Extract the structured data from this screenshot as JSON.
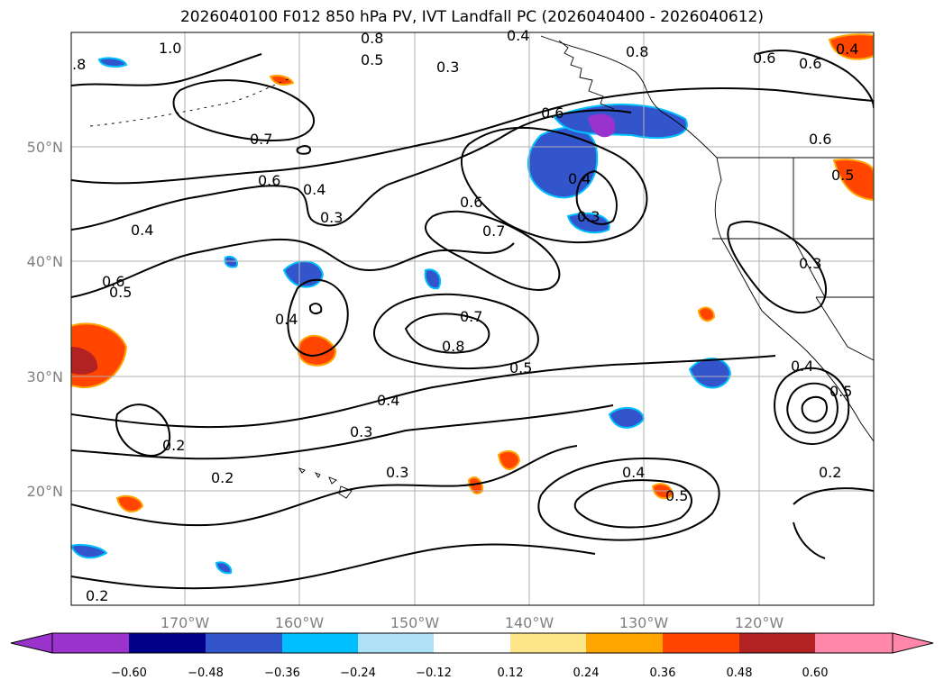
{
  "title": "2026040100 F012 850 hPa PV, IVT Landfall PC (2026040400 - 2026040612)",
  "map": {
    "lon_ticks": [
      "170°W",
      "160°W",
      "150°W",
      "140°W",
      "130°W",
      "120°W"
    ],
    "lat_ticks": [
      "50°N",
      "40°N",
      "30°N",
      "20°N"
    ],
    "contour_labels": [
      "1.0",
      ".8",
      "0.8",
      "0.6",
      "0.3",
      "0.4",
      "0.8",
      "0.6",
      "0.7",
      "0.6",
      "0.4",
      "0.3",
      "0.4",
      "0.6",
      "0.6",
      "0.5",
      "0.7",
      "0.4",
      "0.6",
      "0.4",
      "0.5",
      "0.3",
      "0.4",
      "0.3",
      "0.7",
      "0.8",
      "0.5",
      "0.4",
      "0.3",
      "0.2",
      "0.2",
      "0.3",
      "0.4",
      "0.5",
      "0.4",
      "0.2",
      "0.2",
      "0.5",
      "0.6",
      "0.5"
    ]
  },
  "colorbar": {
    "colors": [
      "#9933cc",
      "#00008b",
      "#3355cc",
      "#00bfff",
      "#aee0f8",
      "#ffffff",
      "#fde68a",
      "#ffa500",
      "#ff4500",
      "#b22222",
      "#ff88aa"
    ],
    "tick_labels": [
      "−0.60",
      "−0.48",
      "−0.36",
      "−0.24",
      "−0.12",
      "0.12",
      "0.24",
      "0.36",
      "0.48",
      "0.60"
    ]
  }
}
